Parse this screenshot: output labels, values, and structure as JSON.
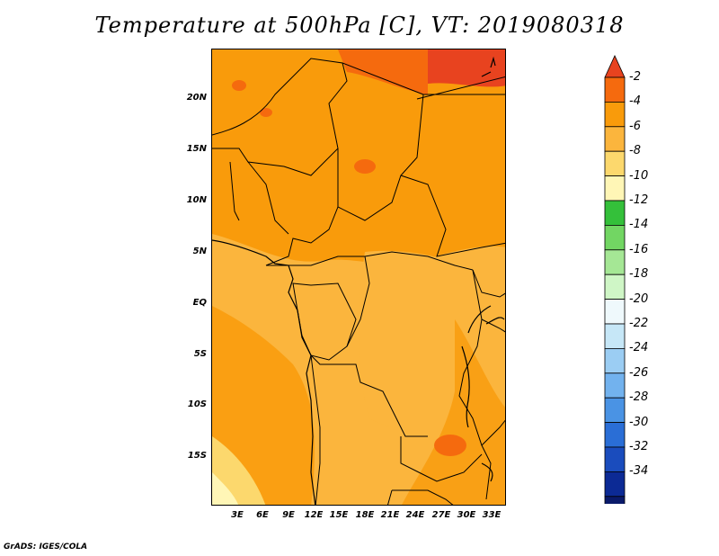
{
  "title": "Temperature at 500hPa [C], VT: 2019080318",
  "footer": "GrADS: IGES/COLA",
  "map": {
    "lat_labels": [
      "20N",
      "15N",
      "10N",
      "5N",
      "EQ",
      "5S",
      "10S",
      "15S"
    ],
    "lon_labels": [
      "3E",
      "6E",
      "9E",
      "12E",
      "15E",
      "18E",
      "21E",
      "24E",
      "27E",
      "30E",
      "33E"
    ]
  },
  "colorbar": {
    "labels": [
      "-2",
      "-4",
      "-6",
      "-8",
      "-10",
      "-12",
      "-14",
      "-16",
      "-18",
      "-20",
      "-22",
      "-24",
      "-26",
      "-28",
      "-30",
      "-32",
      "-34"
    ],
    "colors": [
      "#e8431f",
      "#f56a0e",
      "#f99b0b",
      "#fbb53d",
      "#fcd86d",
      "#fff6b6",
      "#34c03a",
      "#72d663",
      "#a5e795",
      "#cff6c6",
      "#eff9fc",
      "#c6e7f7",
      "#9bcdf3",
      "#72b2ee",
      "#4a93e4",
      "#2a6ed6",
      "#1a4cbd",
      "#0c2a95",
      "#0a1a6a",
      "#e1e1fb"
    ]
  }
}
